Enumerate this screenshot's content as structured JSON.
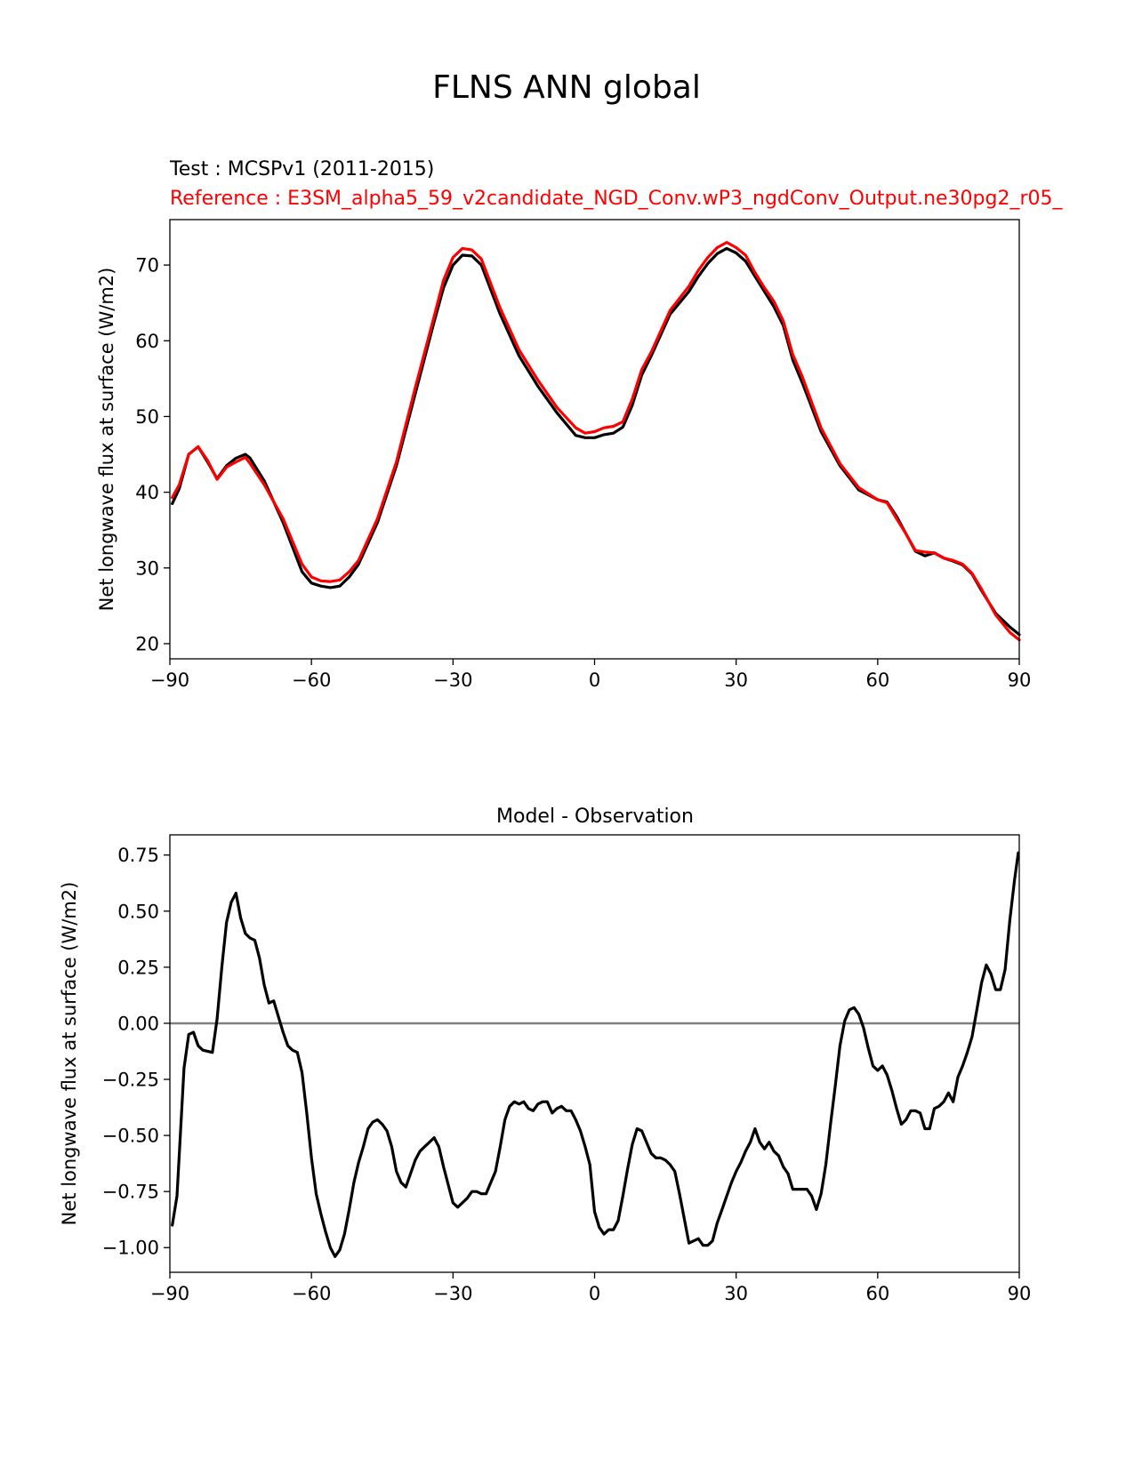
{
  "figure": {
    "suptitle": "FLNS ANN global"
  },
  "chart_data": [
    {
      "type": "line",
      "test_label": "Test : MCSPv1 (2011-2015)",
      "reference_label": "Reference : E3SM_alpha5_59_v2candidate_NGD_Conv.wP3_ngdConv_Output.ne30pg2_r05_",
      "xlabel": "",
      "ylabel": "Net longwave flux at surface (W/m2)",
      "xlim": [
        -90,
        90
      ],
      "ylim": [
        18,
        76
      ],
      "xticks": [
        -90,
        -60,
        -30,
        0,
        30,
        60,
        90
      ],
      "xtick_labels": [
        "−90",
        "−60",
        "−30",
        "0",
        "30",
        "60",
        "90"
      ],
      "yticks": [
        20,
        30,
        40,
        50,
        60,
        70
      ],
      "ytick_labels": [
        "20",
        "30",
        "40",
        "50",
        "60",
        "70"
      ],
      "grid": false,
      "colors": {
        "test": "#000000",
        "reference": "#ff0000"
      },
      "series": [
        {
          "role": "test",
          "color": "#000000",
          "x": [
            -89.5,
            -88,
            -86,
            -84,
            -82,
            -80,
            -78,
            -76,
            -74,
            -73,
            -70,
            -66,
            -62,
            -60,
            -58,
            -56,
            -54,
            -52,
            -50,
            -46,
            -42,
            -38,
            -34,
            -32,
            -30,
            -28,
            -26,
            -24,
            -20,
            -16,
            -12,
            -8,
            -4,
            -2,
            0,
            2,
            4,
            6,
            8,
            10,
            12,
            16,
            20,
            22,
            24,
            26,
            28,
            30,
            32,
            34,
            36,
            38,
            40,
            42,
            44,
            48,
            52,
            56,
            60,
            62,
            64,
            66,
            68,
            70,
            72,
            74,
            76,
            78,
            80,
            82,
            85,
            88,
            90
          ],
          "y": [
            38.5,
            40.5,
            45.0,
            46.0,
            44.0,
            41.8,
            43.5,
            44.5,
            45.0,
            44.5,
            41.5,
            36.0,
            29.5,
            28.0,
            27.6,
            27.4,
            27.6,
            28.8,
            30.5,
            36.0,
            43.5,
            53.0,
            62.5,
            67.0,
            70.0,
            71.3,
            71.2,
            70.0,
            63.5,
            58.0,
            54.0,
            50.5,
            47.5,
            47.2,
            47.2,
            47.6,
            47.8,
            48.6,
            51.5,
            55.5,
            58.0,
            63.5,
            66.5,
            68.5,
            70.2,
            71.5,
            72.2,
            71.6,
            70.5,
            68.5,
            66.5,
            64.5,
            62.0,
            57.5,
            54.5,
            48.0,
            43.5,
            40.3,
            39.0,
            38.7,
            36.8,
            34.5,
            32.2,
            31.6,
            32.0,
            31.3,
            30.9,
            30.4,
            29.2,
            27.0,
            24.0,
            22.2,
            21.2
          ]
        },
        {
          "role": "reference",
          "color": "#ff0000",
          "x": [
            -89.5,
            -88,
            -86,
            -84,
            -82,
            -80,
            -78,
            -76,
            -74,
            -73,
            -70,
            -66,
            -62,
            -60,
            -58,
            -56,
            -54,
            -52,
            -50,
            -46,
            -42,
            -38,
            -34,
            -32,
            -30,
            -28,
            -26,
            -24,
            -20,
            -16,
            -12,
            -8,
            -4,
            -2,
            0,
            2,
            4,
            6,
            8,
            10,
            12,
            16,
            20,
            22,
            24,
            26,
            28,
            30,
            32,
            34,
            36,
            38,
            40,
            42,
            44,
            48,
            52,
            56,
            60,
            62,
            64,
            66,
            68,
            70,
            72,
            74,
            76,
            78,
            80,
            82,
            85,
            88,
            90
          ],
          "y": [
            39.3,
            41.0,
            45.0,
            46.0,
            44.2,
            41.7,
            43.3,
            44.0,
            44.6,
            43.8,
            41.0,
            36.5,
            30.5,
            28.8,
            28.3,
            28.2,
            28.4,
            29.5,
            31.0,
            36.5,
            44.0,
            53.8,
            63.2,
            68.0,
            71.0,
            72.2,
            72.0,
            70.8,
            64.3,
            58.8,
            54.8,
            51.2,
            48.5,
            47.8,
            48.0,
            48.5,
            48.7,
            49.3,
            52.3,
            56.2,
            58.5,
            64.0,
            67.2,
            69.3,
            71.0,
            72.3,
            73.0,
            72.3,
            71.3,
            69.0,
            67.0,
            65.2,
            62.6,
            58.2,
            55.3,
            48.5,
            43.8,
            40.6,
            39.0,
            38.6,
            36.5,
            34.5,
            32.3,
            32.1,
            32.0,
            31.3,
            31.0,
            30.5,
            29.3,
            27.2,
            23.8,
            21.5,
            20.5
          ]
        }
      ]
    },
    {
      "type": "line",
      "title": "Model - Observation",
      "xlabel": "",
      "ylabel": "Net longwave flux at surface (W/m2)",
      "xlim": [
        -90,
        90
      ],
      "ylim": [
        -1.11,
        0.84
      ],
      "xticks": [
        -90,
        -60,
        -30,
        0,
        30,
        60,
        90
      ],
      "xtick_labels": [
        "−90",
        "−60",
        "−30",
        "0",
        "30",
        "60",
        "90"
      ],
      "yticks": [
        -1.0,
        -0.75,
        -0.5,
        -0.25,
        0.0,
        0.25,
        0.5,
        0.75
      ],
      "ytick_labels": [
        "−1.00",
        "−0.75",
        "−0.50",
        "−0.25",
        "0.00",
        "0.25",
        "0.50",
        "0.75"
      ],
      "zero_line": {
        "y": 0,
        "color": "#808080"
      },
      "grid": false,
      "series": [
        {
          "color": "#000000",
          "x": [
            -89.5,
            -88.5,
            -87,
            -86,
            -85,
            -84,
            -83,
            -81,
            -80,
            -79,
            -78,
            -77,
            -76,
            -75,
            -74,
            -73,
            -72,
            -71,
            -70,
            -69,
            -68,
            -67,
            -66,
            -65,
            -64,
            -63,
            -62,
            -61,
            -60,
            -59,
            -58,
            -57,
            -56,
            -55,
            -54,
            -53,
            -52,
            -51,
            -50,
            -49,
            -48,
            -47,
            -46,
            -45,
            -44,
            -43,
            -42,
            -41,
            -40,
            -39,
            -38,
            -37,
            -36,
            -35,
            -34,
            -33,
            -32,
            -31,
            -30,
            -29,
            -28,
            -27,
            -26,
            -25,
            -24,
            -23,
            -22,
            -21,
            -20,
            -19,
            -18,
            -17,
            -16,
            -15,
            -14,
            -13,
            -12,
            -11,
            -10,
            -9,
            -8,
            -7,
            -6,
            -5,
            -4,
            -3,
            -2,
            -1,
            0,
            1,
            2,
            3,
            4,
            5,
            6,
            7,
            8,
            9,
            10,
            11,
            12,
            13,
            14,
            15,
            16,
            17,
            18,
            19,
            20,
            21,
            22,
            23,
            24,
            25,
            26,
            27,
            28,
            29,
            30,
            31,
            32,
            33,
            34,
            35,
            36,
            37,
            38,
            39,
            40,
            41,
            42,
            43,
            44,
            45,
            46,
            47,
            48,
            49,
            50,
            51,
            52,
            53,
            54,
            55,
            56,
            57,
            58,
            59,
            60,
            61,
            62,
            63,
            64,
            65,
            66,
            67,
            68,
            69,
            70,
            71,
            72,
            73,
            74,
            75,
            76,
            77,
            78,
            79,
            80,
            81,
            82,
            83,
            84,
            85,
            86,
            87,
            88,
            89,
            89.8
          ],
          "y": [
            -0.9,
            -0.77,
            -0.2,
            -0.05,
            -0.04,
            -0.1,
            -0.12,
            -0.13,
            0.02,
            0.25,
            0.45,
            0.54,
            0.58,
            0.47,
            0.4,
            0.38,
            0.37,
            0.29,
            0.17,
            0.09,
            0.1,
            0.03,
            -0.04,
            -0.1,
            -0.12,
            -0.13,
            -0.22,
            -0.4,
            -0.6,
            -0.76,
            -0.85,
            -0.93,
            -1.0,
            -1.04,
            -1.01,
            -0.94,
            -0.83,
            -0.71,
            -0.62,
            -0.55,
            -0.47,
            -0.44,
            -0.43,
            -0.45,
            -0.48,
            -0.55,
            -0.66,
            -0.71,
            -0.73,
            -0.67,
            -0.61,
            -0.57,
            -0.55,
            -0.53,
            -0.51,
            -0.55,
            -0.64,
            -0.72,
            -0.8,
            -0.82,
            -0.8,
            -0.78,
            -0.75,
            -0.75,
            -0.76,
            -0.76,
            -0.71,
            -0.66,
            -0.55,
            -0.43,
            -0.37,
            -0.35,
            -0.36,
            -0.35,
            -0.38,
            -0.39,
            -0.36,
            -0.35,
            -0.35,
            -0.4,
            -0.38,
            -0.37,
            -0.39,
            -0.39,
            -0.43,
            -0.48,
            -0.55,
            -0.63,
            -0.84,
            -0.91,
            -0.94,
            -0.92,
            -0.92,
            -0.88,
            -0.77,
            -0.65,
            -0.54,
            -0.47,
            -0.48,
            -0.53,
            -0.58,
            -0.6,
            -0.6,
            -0.61,
            -0.63,
            -0.66,
            -0.76,
            -0.87,
            -0.98,
            -0.97,
            -0.96,
            -0.99,
            -0.99,
            -0.97,
            -0.89,
            -0.83,
            -0.77,
            -0.71,
            -0.66,
            -0.62,
            -0.57,
            -0.53,
            -0.47,
            -0.53,
            -0.56,
            -0.53,
            -0.57,
            -0.59,
            -0.64,
            -0.67,
            -0.74,
            -0.74,
            -0.74,
            -0.74,
            -0.77,
            -0.83,
            -0.76,
            -0.63,
            -0.45,
            -0.28,
            -0.1,
            0.01,
            0.06,
            0.07,
            0.04,
            -0.02,
            -0.11,
            -0.19,
            -0.21,
            -0.19,
            -0.23,
            -0.3,
            -0.38,
            -0.45,
            -0.43,
            -0.39,
            -0.39,
            -0.4,
            -0.47,
            -0.47,
            -0.38,
            -0.37,
            -0.35,
            -0.31,
            -0.35,
            -0.24,
            -0.19,
            -0.13,
            -0.06,
            0.06,
            0.18,
            0.26,
            0.22,
            0.15,
            0.15,
            0.24,
            0.46,
            0.64,
            0.76
          ]
        }
      ]
    }
  ]
}
